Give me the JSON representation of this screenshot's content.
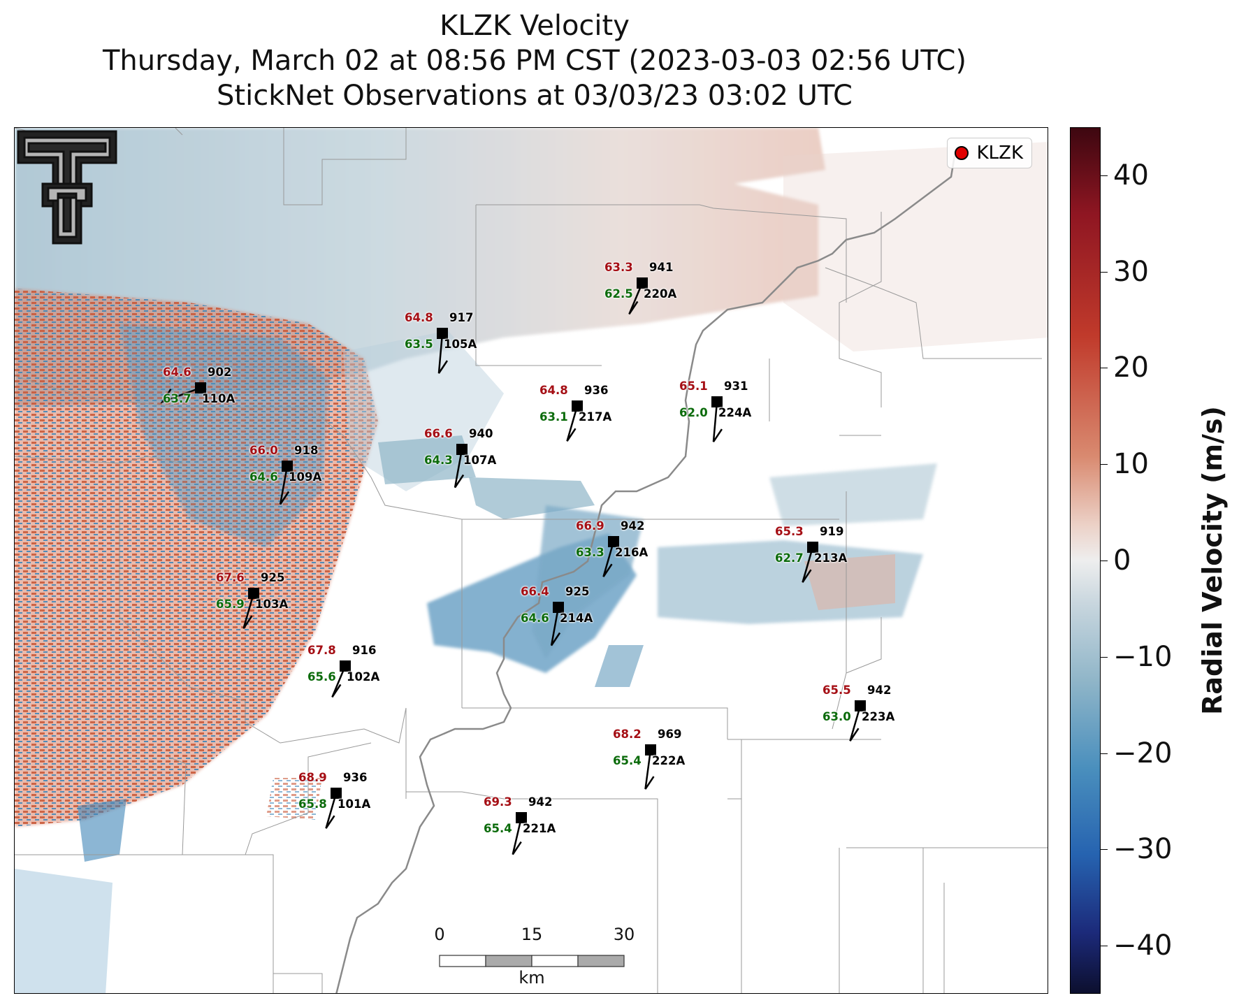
{
  "title": {
    "line1": "KLZK Velocity",
    "line2": "Thursday, March 02 at 08:56 PM CST (2023-03-03 02:56 UTC)",
    "line3": "StickNet Observations at 03/03/23 03:02 UTC"
  },
  "legend": {
    "label": "KLZK",
    "marker_color": "#e00000"
  },
  "scalebar": {
    "ticks": [
      "0",
      "15",
      "30"
    ],
    "unit": "km"
  },
  "colorbar": {
    "label": "Radial Velocity (m/s)",
    "range": [
      -45,
      45
    ],
    "ticks": [
      "40",
      "30",
      "20",
      "10",
      "0",
      "−10",
      "−20",
      "−30",
      "−40"
    ],
    "tick_values": [
      40,
      30,
      20,
      10,
      0,
      -10,
      -20,
      -30,
      -40
    ]
  },
  "colors": {
    "temperature": "#a50f15",
    "dewpoint": "#0b6b0b",
    "river": "#888888",
    "boundary": "#999999"
  },
  "logo_icon": "texas-tech-double-t-logo",
  "stations": [
    {
      "id": "220A",
      "temp": "63.3",
      "dew": "62.5",
      "pres": "941"
    },
    {
      "id": "105A",
      "temp": "64.8",
      "dew": "63.5",
      "pres": "917"
    },
    {
      "id": "110A",
      "temp": "64.6",
      "dew": "63.7",
      "pres": "902"
    },
    {
      "id": "217A",
      "temp": "64.8",
      "dew": "63.1",
      "pres": "936"
    },
    {
      "id": "224A",
      "temp": "65.1",
      "dew": "62.0",
      "pres": "931"
    },
    {
      "id": "107A",
      "temp": "66.6",
      "dew": "64.3",
      "pres": "940"
    },
    {
      "id": "109A",
      "temp": "66.0",
      "dew": "64.6",
      "pres": "918"
    },
    {
      "id": "216A",
      "temp": "66.9",
      "dew": "63.3",
      "pres": "942"
    },
    {
      "id": "213A",
      "temp": "65.3",
      "dew": "62.7",
      "pres": "919"
    },
    {
      "id": "103A",
      "temp": "67.6",
      "dew": "65.9",
      "pres": "925"
    },
    {
      "id": "214A",
      "temp": "66.4",
      "dew": "64.6",
      "pres": "925"
    },
    {
      "id": "102A",
      "temp": "67.8",
      "dew": "65.6",
      "pres": "916"
    },
    {
      "id": "223A",
      "temp": "65.5",
      "dew": "63.0",
      "pres": "942"
    },
    {
      "id": "222A",
      "temp": "68.2",
      "dew": "65.4",
      "pres": "969"
    },
    {
      "id": "101A",
      "temp": "68.9",
      "dew": "65.8",
      "pres": "936"
    },
    {
      "id": "221A",
      "temp": "69.3",
      "dew": "65.4",
      "pres": "942"
    }
  ]
}
